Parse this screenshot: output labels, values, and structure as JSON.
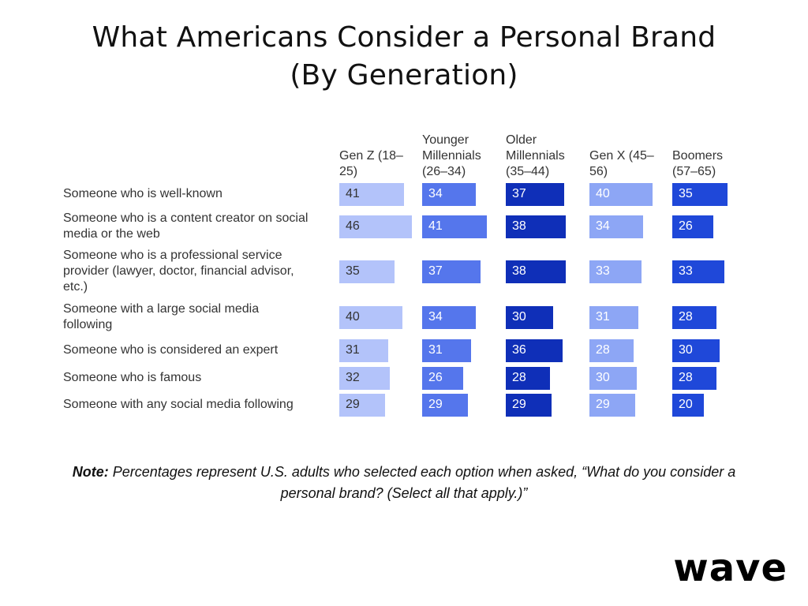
{
  "title": {
    "line1": "What Americans Consider a Personal Brand",
    "line2": "(By Generation)"
  },
  "chart_data": {
    "type": "table",
    "columns": [
      {
        "name": "Gen Z (18–25)",
        "header_lines": [
          "Gen Z (18–",
          "25)"
        ],
        "color": "#b3c3fa",
        "text_color": "#333333"
      },
      {
        "name": "Younger Millennials (26–34)",
        "header_lines": [
          "Younger",
          "Millennials",
          "(26–34)"
        ],
        "color": "#5576ec",
        "text_color": "#ffffff"
      },
      {
        "name": "Older Millennials (35–44)",
        "header_lines": [
          "Older",
          "Millennials",
          "(35–44)"
        ],
        "color": "#0f2fb8",
        "text_color": "#ffffff"
      },
      {
        "name": "Gen X (45–56)",
        "header_lines": [
          "Gen X (45–",
          "56)"
        ],
        "color": "#8da6f5",
        "text_color": "#ffffff"
      },
      {
        "name": "Boomers (57–65)",
        "header_lines": [
          "Boomers",
          "(57–65)"
        ],
        "color": "#1f48d9",
        "text_color": "#ffffff"
      }
    ],
    "rows": [
      {
        "label_lines": [
          "Someone who is well-known"
        ],
        "values": [
          41,
          34,
          37,
          40,
          35
        ]
      },
      {
        "label_lines": [
          "Someone who is a content creator on social",
          "media or the web"
        ],
        "values": [
          46,
          41,
          38,
          34,
          26
        ]
      },
      {
        "label_lines": [
          "Someone who is a professional service",
          "provider (lawyer, doctor, financial advisor,",
          "etc.)"
        ],
        "values": [
          35,
          37,
          38,
          33,
          33
        ]
      },
      {
        "label_lines": [
          "Someone with a large social media",
          "following"
        ],
        "values": [
          40,
          34,
          30,
          31,
          28
        ]
      },
      {
        "label_lines": [
          "Someone who is considered an expert"
        ],
        "values": [
          31,
          31,
          36,
          28,
          30
        ]
      },
      {
        "label_lines": [
          "Someone who is famous"
        ],
        "values": [
          32,
          26,
          28,
          30,
          28
        ]
      },
      {
        "label_lines": [
          "Someone with any social media following"
        ],
        "values": [
          29,
          29,
          29,
          29,
          20
        ]
      }
    ]
  },
  "note": {
    "label": "Note:",
    "text": " Percentages represent U.S. adults who selected each option when asked, “What do you consider a personal brand? (Select all that apply.)”"
  },
  "logo": {
    "text": "wave"
  }
}
